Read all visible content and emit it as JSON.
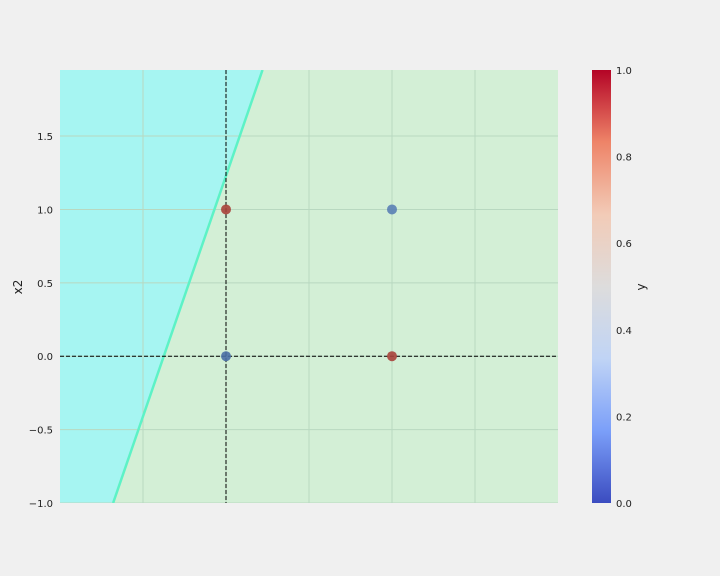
{
  "chart_data": {
    "type": "scatter",
    "title": "",
    "xlabel": "",
    "ylabel": "x2",
    "xlim": [
      -1.0,
      2.0
    ],
    "ylim": [
      -1.0,
      1.95
    ],
    "x_ticks_visible": false,
    "y_ticks": [
      -1.0,
      -0.5,
      0.0,
      0.5,
      1.0,
      1.5
    ],
    "y_tick_labels": [
      "−1.0",
      "−0.5",
      "0.0",
      "0.5",
      "1.0",
      "1.5"
    ],
    "grid": true,
    "reference_lines": {
      "x": 0.0,
      "y": 0.0,
      "style": "dashed",
      "color": "#000000"
    },
    "decision_boundary": {
      "description": "line separating two predicted regions",
      "points": [
        [
          -0.68,
          -1.0
        ],
        [
          0.22,
          1.95
        ]
      ],
      "left_region_color": "#a6f5f2",
      "right_region_color": "#d3efd6",
      "boundary_color": "#5df2c6"
    },
    "points": [
      {
        "x": 0,
        "y": 0,
        "class": 0,
        "color": "#4a6fa5"
      },
      {
        "x": 0,
        "y": 1,
        "class": 1,
        "color": "#a8433b"
      },
      {
        "x": 1,
        "y": 0,
        "class": 1,
        "color": "#a8433b"
      },
      {
        "x": 1,
        "y": 1,
        "class": 0,
        "color": "#5a7fb5"
      }
    ],
    "colorbar": {
      "label": "y",
      "range": [
        0.0,
        1.0
      ],
      "ticks": [
        0.0,
        0.2,
        0.4,
        0.6,
        0.8,
        1.0
      ],
      "tick_labels": [
        "0.0",
        "0.2",
        "0.4",
        "0.6",
        "0.8",
        "1.0"
      ],
      "colormap": "coolwarm",
      "colors": [
        "#3b4cc0",
        "#7b9ff9",
        "#c0d4f5",
        "#dddcdc",
        "#f2cbb7",
        "#ee8468",
        "#b40426"
      ]
    }
  }
}
